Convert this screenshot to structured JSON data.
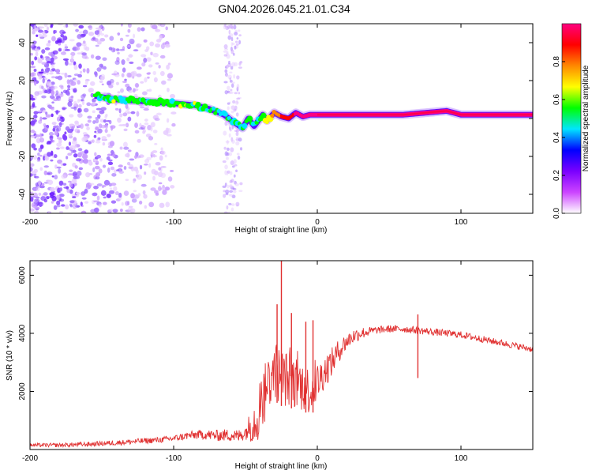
{
  "title": "GN04.2026.045.21.01.C34",
  "chart_data": [
    {
      "type": "heatmap",
      "name": "spectrogram",
      "xlabel": "Height of straight line (km)",
      "ylabel": "Frequency (Hz)",
      "xlim": [
        -200,
        150
      ],
      "ylim": [
        -50,
        50
      ],
      "xticks": [
        -200,
        -100,
        0,
        100
      ],
      "xtick_labels": [
        "-200",
        "-100",
        "0",
        "100"
      ],
      "yticks": [
        -40,
        -20,
        0,
        20,
        40
      ],
      "ytick_labels": [
        "-40",
        "-20",
        "0",
        "20",
        "40"
      ],
      "colorbar": {
        "label": "Normalized spectral amplitude",
        "range": [
          0,
          1
        ],
        "ticks": [
          0.0,
          0.2,
          0.4,
          0.6,
          0.8
        ],
        "tick_labels": [
          "0.0",
          "0.2",
          "0.4",
          "0.6",
          "0.8"
        ],
        "colors": [
          "#ffffff",
          "#cc44ff",
          "#7a00ff",
          "#0000ff",
          "#00e5ff",
          "#00ff00",
          "#ffff00",
          "#ff8800",
          "#ff0000",
          "#ff0080"
        ]
      },
      "ridge": {
        "x": [
          -155,
          -140,
          -120,
          -100,
          -85,
          -75,
          -65,
          -58,
          -52,
          -48,
          -44,
          -38,
          -35,
          -30,
          -25,
          -20,
          -15,
          -10,
          -5,
          0,
          20,
          40,
          60,
          75,
          90,
          100,
          110,
          130,
          150
        ],
        "freq": [
          12,
          10,
          9,
          8,
          7,
          5,
          2,
          -2,
          -5,
          0,
          -4,
          2,
          -1,
          3,
          1,
          0,
          3,
          1,
          2,
          2,
          2,
          2,
          2,
          3,
          4,
          2,
          2,
          2,
          2
        ],
        "amplitude": [
          0.45,
          0.5,
          0.5,
          0.48,
          0.5,
          0.45,
          0.45,
          0.4,
          0.45,
          0.5,
          0.4,
          0.55,
          0.6,
          0.7,
          0.8,
          0.85,
          0.9,
          0.95,
          0.95,
          0.95,
          0.9,
          0.95,
          0.95,
          0.9,
          0.9,
          0.95,
          0.95,
          0.9,
          0.9
        ]
      },
      "noise_region_x": [
        -200,
        -100
      ],
      "noise_band_x": [
        -65,
        -53
      ]
    },
    {
      "type": "line",
      "name": "snr",
      "series": [
        {
          "name": "SNR",
          "color": "#e03030"
        }
      ],
      "xlabel": "Height of straight line (km)",
      "ylabel": "SNR (10 * v/v)",
      "xlim": [
        -200,
        150
      ],
      "ylim": [
        0,
        6500
      ],
      "xticks": [
        -200,
        -100,
        0,
        100
      ],
      "xtick_labels": [
        "-200",
        "-100",
        "0",
        "100"
      ],
      "yticks": [
        2000,
        4000,
        6000
      ],
      "ytick_labels": [
        "2000",
        "4000",
        "6000"
      ],
      "envelope": {
        "x": [
          -200,
          -180,
          -160,
          -140,
          -120,
          -110,
          -100,
          -90,
          -80,
          -70,
          -60,
          -55,
          -50,
          -45,
          -40,
          -35,
          -30,
          -25,
          -20,
          -15,
          -10,
          -5,
          0,
          5,
          10,
          15,
          20,
          25,
          30,
          40,
          50,
          60,
          70,
          80,
          90,
          100,
          110,
          120,
          130,
          140,
          150
        ],
        "y": [
          150,
          150,
          180,
          230,
          300,
          330,
          380,
          480,
          520,
          480,
          500,
          450,
          600,
          900,
          1400,
          2200,
          2800,
          2500,
          2400,
          2300,
          2200,
          2000,
          2300,
          2700,
          3000,
          3400,
          3700,
          3900,
          4000,
          4100,
          4150,
          4150,
          4100,
          4050,
          4000,
          3950,
          3850,
          3750,
          3650,
          3550,
          3450
        ]
      },
      "noise_amplitude": {
        "x": [
          -200,
          -100,
          -50,
          -40,
          -10,
          0,
          20,
          40,
          150
        ],
        "y": [
          60,
          110,
          250,
          1100,
          900,
          700,
          300,
          130,
          110
        ]
      },
      "spikes": [
        {
          "x": -25,
          "y": 6500
        },
        {
          "x": -28,
          "y": 5000
        },
        {
          "x": -18,
          "y": 4700
        },
        {
          "x": -8,
          "y": 4400
        },
        {
          "x": -3,
          "y": 4450
        },
        {
          "x": 70,
          "y": 4650
        }
      ]
    }
  ]
}
